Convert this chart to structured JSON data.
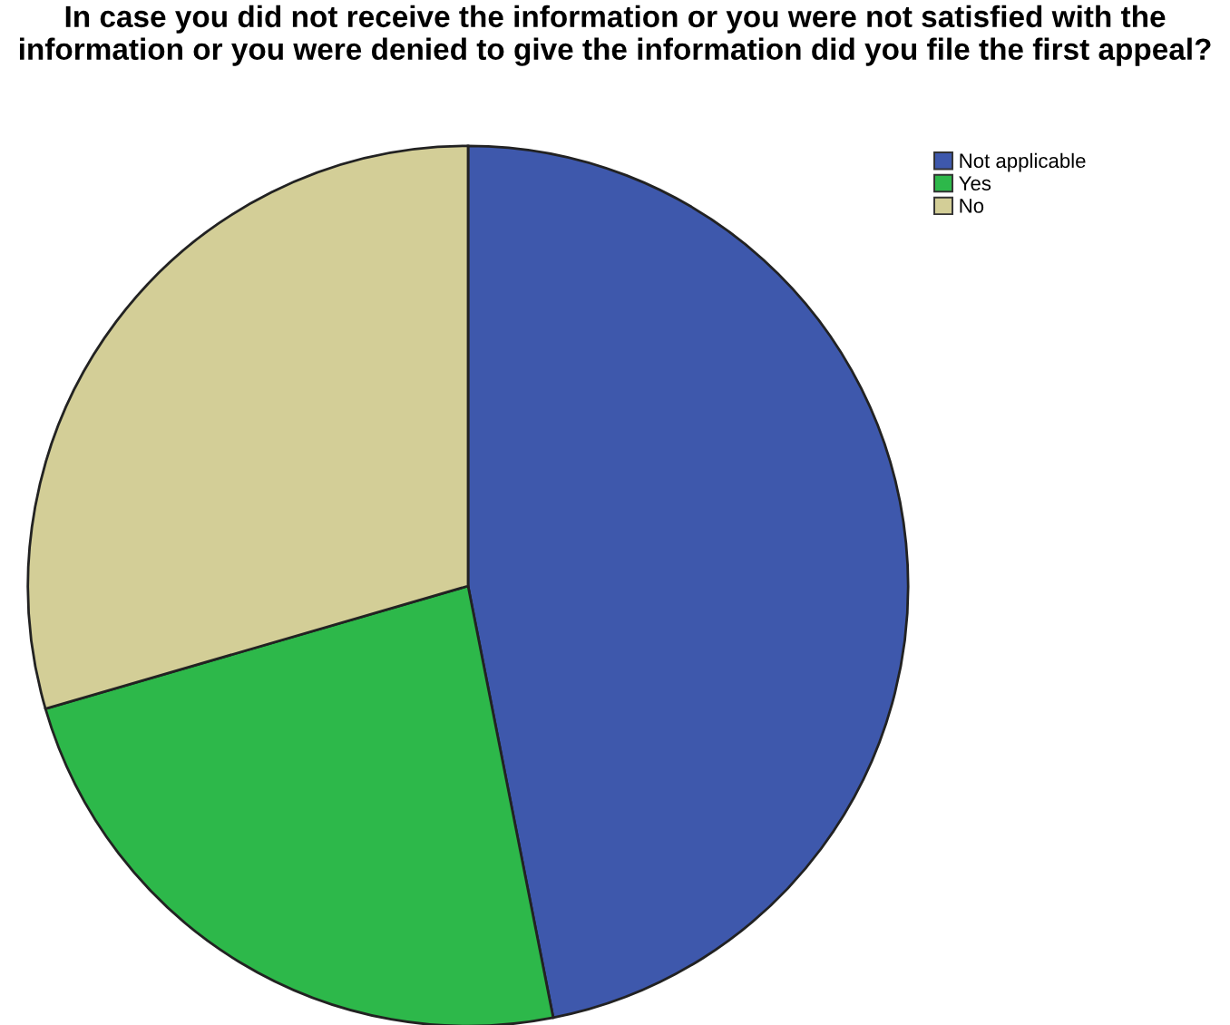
{
  "chart_data": {
    "type": "pie",
    "title": "In case you did not receive the information or you were not satisfied with the information or you were denied to give the information did you file the first appeal?",
    "categories": [
      "Not applicable",
      "Yes",
      "No"
    ],
    "values": [
      46.9,
      23.6,
      29.5
    ],
    "colors": [
      "#3e58ac",
      "#2db84a",
      "#d3ce97"
    ],
    "legend": "top right"
  }
}
